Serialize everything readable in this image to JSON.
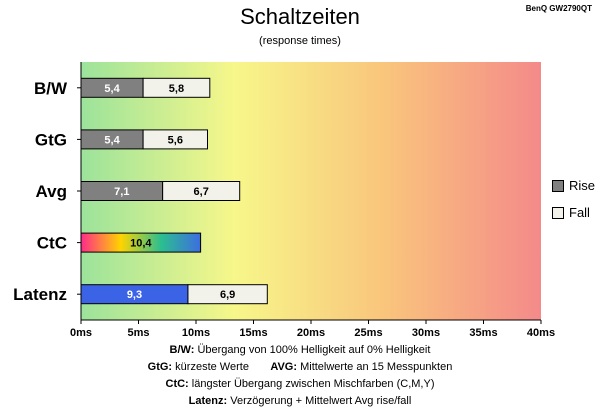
{
  "title": "Schaltzeiten",
  "subtitle": "(response times)",
  "model": "BenQ GW2790QT",
  "colors": {
    "rise": "#808080",
    "fall": "#f2f2ea",
    "latency": "#3b63e6",
    "gradient": [
      "#9be39b",
      "#f7f78a",
      "#f9c47c",
      "#f48a8a"
    ],
    "ctc": [
      "#ff2a8a",
      "#ffd400",
      "#2bbf8f",
      "#3d6de0"
    ]
  },
  "legend": [
    {
      "label": "Rise",
      "color": "#808080"
    },
    {
      "label": "Fall",
      "color": "#f2f2ea"
    }
  ],
  "chart_data": {
    "type": "bar",
    "stacked": true,
    "orientation": "horizontal",
    "categories": [
      "B/W",
      "GtG",
      "Avg",
      "CtC",
      "Latenz"
    ],
    "series": [
      {
        "name": "Rise",
        "values": [
          5.4,
          5.4,
          7.1,
          10.4,
          9.3
        ],
        "labels": [
          "5,4",
          "5,4",
          "7,1",
          "10,4",
          "9,3"
        ]
      },
      {
        "name": "Fall",
        "values": [
          5.8,
          5.6,
          6.7,
          null,
          6.9
        ],
        "labels": [
          "5,8",
          "5,6",
          "6,7",
          "",
          "6,9"
        ]
      }
    ],
    "xlim": [
      0,
      40
    ],
    "xticks": [
      "0ms",
      "5ms",
      "10ms",
      "15ms",
      "20ms",
      "25ms",
      "30ms",
      "35ms",
      "40ms"
    ],
    "legend_position": "right"
  },
  "footer": [
    {
      "bold": "B/W:",
      "text": " Übergang von 100% Helligkeit auf 0% Helligkeit"
    },
    {
      "bold": "GtG:",
      "text": " kürzeste Werte",
      "bold2": "AVG:",
      "text2": " Mittelwerte an 15 Messpunkten"
    },
    {
      "bold": "CtC:",
      "text": " längster Übergang zwischen Mischfarben (C,M,Y)"
    },
    {
      "bold": "Latenz:",
      "text": " Verzögerung + Mittelwert Avg rise/fall"
    }
  ]
}
